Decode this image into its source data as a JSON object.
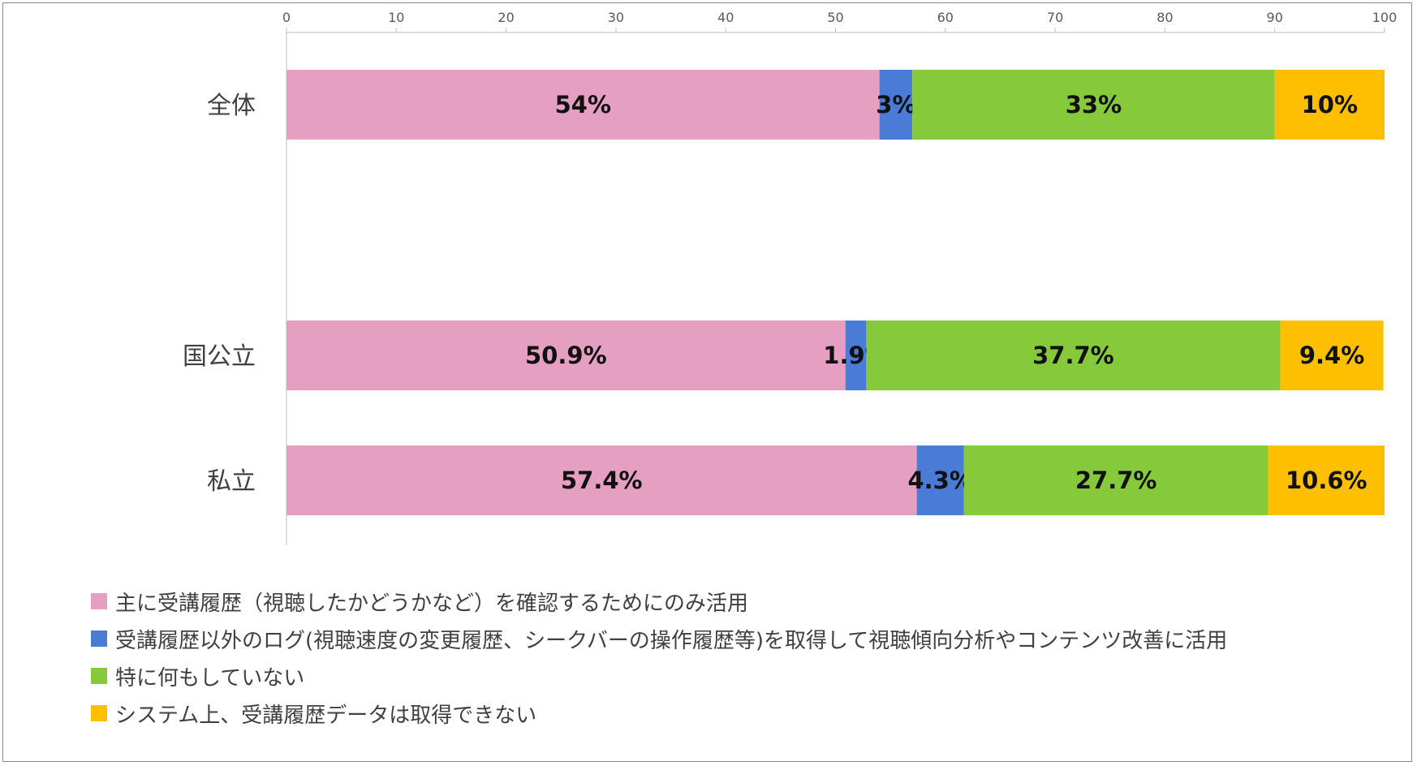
{
  "chart_data": {
    "type": "bar",
    "orientation": "horizontal",
    "stacked": true,
    "categories": [
      "全体",
      "国公立",
      "私立"
    ],
    "series": [
      {
        "name": "主に受講履歴（視聴したかどうかなど）を確認するためにのみ活用",
        "values": [
          54,
          50.9,
          57.4
        ],
        "labels": [
          "54%",
          "50.9%",
          "57.4%"
        ],
        "color": "#e59fc0"
      },
      {
        "name": "受講履歴以外のログ(視聴速度の変更履歴、シークバーの操作履歴等)を取得して視聴傾向分析やコンテンツ改善に活用",
        "values": [
          3,
          1.9,
          4.3
        ],
        "labels": [
          "3%",
          "1.9%",
          "4.3%"
        ],
        "color": "#4a7bd6"
      },
      {
        "name": "特に何もしていない",
        "values": [
          33,
          37.7,
          27.7
        ],
        "labels": [
          "33%",
          "37.7%",
          "27.7%"
        ],
        "color": "#86c93a"
      },
      {
        "name": "システム上、受講履歴データは取得できない",
        "values": [
          10,
          9.4,
          10.6
        ],
        "labels": [
          "10%",
          "9.4%",
          "10.6%"
        ],
        "color": "#fdbf00"
      }
    ],
    "xlim": [
      0,
      100
    ],
    "xticks": [
      0,
      10,
      20,
      30,
      40,
      50,
      60,
      70,
      80,
      90,
      100
    ],
    "tick_position": "top",
    "grid": false,
    "legend_position": "bottom-left",
    "title": "",
    "xlabel": "",
    "ylabel": ""
  }
}
